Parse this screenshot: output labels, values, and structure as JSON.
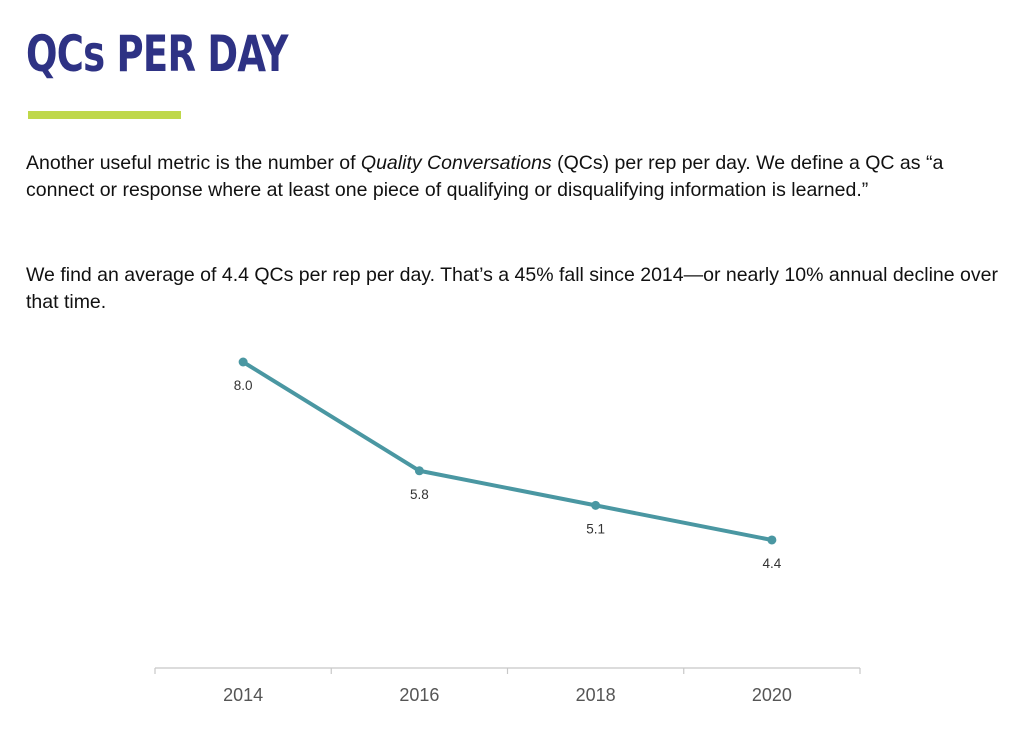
{
  "title": "QCs PER DAY",
  "colors": {
    "title": "#2e3284",
    "accent": "#bfd84a",
    "line": "#4a97a2",
    "axis": "#c8c8c8",
    "tick_label": "#555555",
    "data_label": "#333333"
  },
  "paragraph1": {
    "before": "Another useful metric is the number of ",
    "emphasis": "Quality Conversations",
    "after": " (QCs) per rep per day. We define a QC as “a connect or response where at least one piece of qualifying or disqualifying information is learned.”"
  },
  "paragraph2": "We find an average of 4.4 QCs per rep per day. That’s a 45% fall since 2014—or nearly 10% annual decline over that time.",
  "chart_data": {
    "type": "line",
    "title": "",
    "xlabel": "",
    "ylabel": "",
    "categories": [
      "2014",
      "2016",
      "2018",
      "2020"
    ],
    "series": [
      {
        "name": "QCs per rep per day",
        "values": [
          8.0,
          5.8,
          5.1,
          4.4
        ]
      }
    ],
    "data_labels": [
      "8.0",
      "5.8",
      "5.1",
      "4.4"
    ],
    "ylim": [
      0,
      10
    ],
    "grid": false,
    "legend": "none"
  }
}
